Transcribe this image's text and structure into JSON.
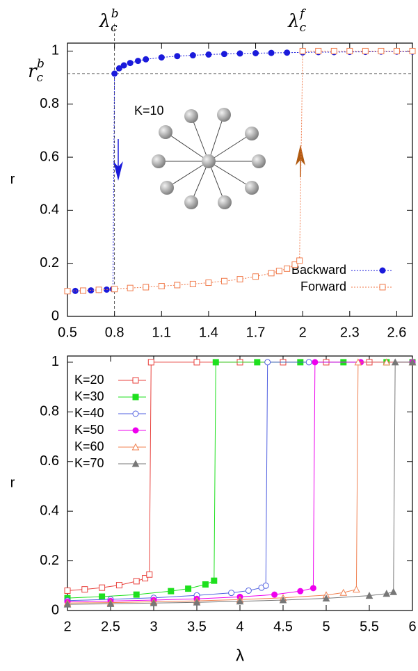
{
  "chart_data": [
    {
      "type": "line",
      "ylabel": "r",
      "xlim": [
        0.5,
        2.7
      ],
      "ylim": [
        0,
        1.03
      ],
      "xticks": [
        0.5,
        0.8,
        1.1,
        1.4,
        1.7,
        2,
        2.3,
        2.6
      ],
      "yticks": [
        0,
        0.2,
        0.4,
        0.6,
        0.8,
        1
      ],
      "legend": "bottom-right",
      "line_style": "dotted",
      "annotations": [
        {
          "text": "λ",
          "sub": "c",
          "sup": "b",
          "x": 0.8,
          "guide": true
        },
        {
          "text": "λ",
          "sub": "c",
          "sup": "f",
          "x": 2
        },
        {
          "text": "r",
          "sub": "c",
          "sup": "b",
          "y": 0.915,
          "guide": true
        },
        {
          "text": "K=10"
        }
      ],
      "series": [
        {
          "name": "Backward",
          "color": "#1a1adb",
          "marker": "circle",
          "filled": true,
          "x": [
            0.5,
            0.55,
            0.6,
            0.65,
            0.7,
            0.75,
            0.79,
            0.8,
            0.83,
            0.86,
            0.9,
            0.95,
            1.0,
            1.1,
            1.2,
            1.3,
            1.4,
            1.5,
            1.6,
            1.7,
            1.8,
            1.9,
            2.0,
            2.1,
            2.2,
            2.3,
            2.4,
            2.5,
            2.6,
            2.7
          ],
          "values": [
            0.095,
            0.096,
            0.097,
            0.098,
            0.1,
            0.101,
            0.103,
            0.915,
            0.935,
            0.946,
            0.955,
            0.963,
            0.969,
            0.976,
            0.981,
            0.984,
            0.987,
            0.989,
            0.991,
            0.992,
            0.993,
            0.994,
            0.995,
            0.996,
            0.996,
            0.997,
            0.997,
            0.998,
            0.998,
            0.998
          ]
        },
        {
          "name": "Forward",
          "color": "#f07a4a",
          "marker": "square",
          "filled": false,
          "x": [
            0.5,
            0.6,
            0.7,
            0.8,
            0.9,
            1.0,
            1.1,
            1.2,
            1.3,
            1.4,
            1.5,
            1.6,
            1.7,
            1.8,
            1.85,
            1.9,
            1.95,
            1.98,
            2.0,
            2.1,
            2.2,
            2.3,
            2.4,
            2.5,
            2.6,
            2.7
          ],
          "values": [
            0.095,
            0.097,
            0.1,
            0.103,
            0.107,
            0.11,
            0.114,
            0.118,
            0.122,
            0.127,
            0.133,
            0.14,
            0.15,
            0.163,
            0.171,
            0.18,
            0.195,
            0.21,
            1,
            1,
            1,
            1,
            1,
            1,
            1,
            1
          ]
        }
      ]
    },
    {
      "type": "line",
      "xlabel": "λ",
      "ylabel": "r",
      "xlim": [
        2,
        6
      ],
      "ylim": [
        0,
        1.025
      ],
      "xticks": [
        2,
        2.5,
        3,
        3.5,
        4,
        4.5,
        5,
        5.5,
        6
      ],
      "yticks": [
        0,
        0.2,
        0.4,
        0.6,
        0.8,
        1
      ],
      "legend": "top-left",
      "line_style": "solid",
      "series": [
        {
          "name": "K=20",
          "color": "#e8413c",
          "marker": "square",
          "filled": false,
          "x": [
            2,
            2.2,
            2.4,
            2.6,
            2.8,
            2.9,
            2.95,
            2.97,
            3.5,
            4,
            4.5,
            5,
            5.5,
            6
          ],
          "values": [
            0.08,
            0.085,
            0.092,
            0.102,
            0.118,
            0.13,
            0.145,
            1,
            1,
            1,
            1,
            1,
            1,
            1
          ]
        },
        {
          "name": "K=30",
          "color": "#1ee01e",
          "marker": "square",
          "filled": true,
          "x": [
            2,
            2.4,
            2.8,
            3.2,
            3.4,
            3.6,
            3.7,
            3.72,
            4.2,
            4.7,
            5.2,
            5.7,
            6
          ],
          "values": [
            0.05,
            0.056,
            0.064,
            0.078,
            0.088,
            0.105,
            0.12,
            1,
            1,
            1,
            1,
            1,
            1
          ]
        },
        {
          "name": "K=40",
          "color": "#4f5fe0",
          "marker": "circle",
          "filled": false,
          "x": [
            2,
            2.5,
            3,
            3.5,
            3.9,
            4.1,
            4.25,
            4.3,
            4.32,
            4.8,
            5.4,
            6
          ],
          "values": [
            0.04,
            0.045,
            0.051,
            0.061,
            0.071,
            0.08,
            0.092,
            0.1,
            1,
            1,
            1,
            1
          ]
        },
        {
          "name": "K=50",
          "color": "#ee00ee",
          "marker": "circle",
          "filled": true,
          "x": [
            2,
            2.5,
            3,
            3.5,
            4,
            4.4,
            4.7,
            4.85,
            4.87,
            5.4,
            6
          ],
          "values": [
            0.035,
            0.038,
            0.042,
            0.047,
            0.055,
            0.064,
            0.078,
            0.09,
            1,
            1,
            1
          ]
        },
        {
          "name": "K=60",
          "color": "#f08050",
          "marker": "triangle",
          "filled": false,
          "x": [
            2,
            2.5,
            3,
            3.5,
            4,
            4.5,
            5,
            5.2,
            5.35,
            5.37,
            5.7,
            6
          ],
          "values": [
            0.03,
            0.032,
            0.035,
            0.039,
            0.044,
            0.051,
            0.062,
            0.072,
            0.085,
            1,
            1,
            1
          ]
        },
        {
          "name": "K=70",
          "color": "#777777",
          "marker": "triangle",
          "filled": true,
          "x": [
            2,
            2.5,
            3,
            3.5,
            4,
            4.5,
            5,
            5.5,
            5.7,
            5.78,
            5.8,
            6
          ],
          "values": [
            0.025,
            0.027,
            0.03,
            0.033,
            0.037,
            0.042,
            0.049,
            0.06,
            0.068,
            0.075,
            1,
            1
          ]
        }
      ]
    }
  ]
}
